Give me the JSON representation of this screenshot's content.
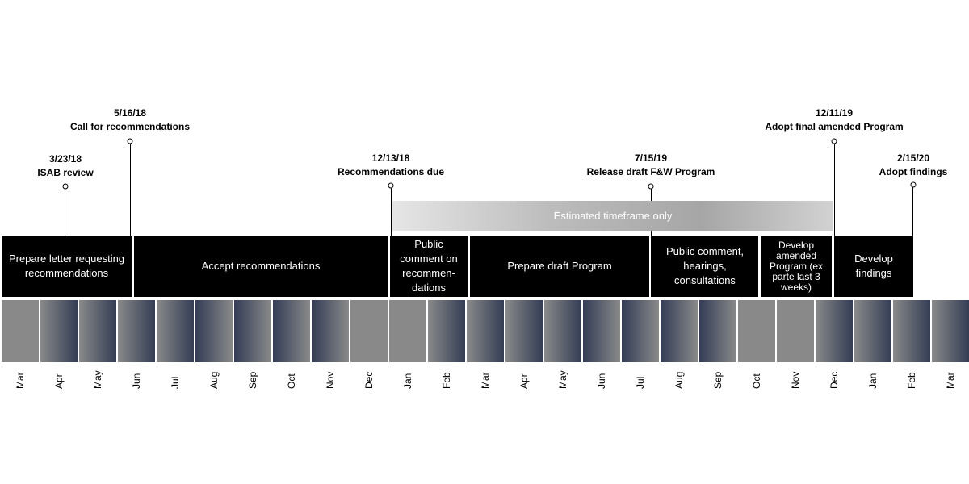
{
  "milestones": [
    {
      "date": "3/23/18",
      "label": "ISAB review"
    },
    {
      "date": "5/16/18",
      "label": "Call for recommendations"
    },
    {
      "date": "12/13/18",
      "label": "Recommendations due"
    },
    {
      "date": "7/15/19",
      "label": "Release draft F&W Program"
    },
    {
      "date": "12/11/19",
      "label": "Adopt final amended Program"
    },
    {
      "date": "2/15/20",
      "label": "Adopt findings"
    }
  ],
  "estimate_band": {
    "label": "Estimated timeframe only"
  },
  "phases": [
    {
      "label": "Prepare letter requesting recommendations"
    },
    {
      "label": "Accept recommendations"
    },
    {
      "label": "Public comment on recommen-dations"
    },
    {
      "label": "Prepare draft Program"
    },
    {
      "label": "Public comment, hearings, consultations"
    },
    {
      "label": "Develop amended Program (ex parte last 3 weeks)"
    },
    {
      "label": "Develop findings"
    }
  ],
  "months": [
    "Mar",
    "Apr",
    "May",
    "Jun",
    "Jul",
    "Aug",
    "Sep",
    "Oct",
    "Nov",
    "Dec",
    "Jan",
    "Feb",
    "Mar",
    "Apr",
    "May",
    "Jun",
    "Jul",
    "Aug",
    "Sep",
    "Oct",
    "Nov",
    "Dec",
    "Jan",
    "Feb",
    "Mar"
  ],
  "colors": {
    "phase_bg": "#000000",
    "band_dark": "#333d55",
    "band_light": "#898989"
  }
}
